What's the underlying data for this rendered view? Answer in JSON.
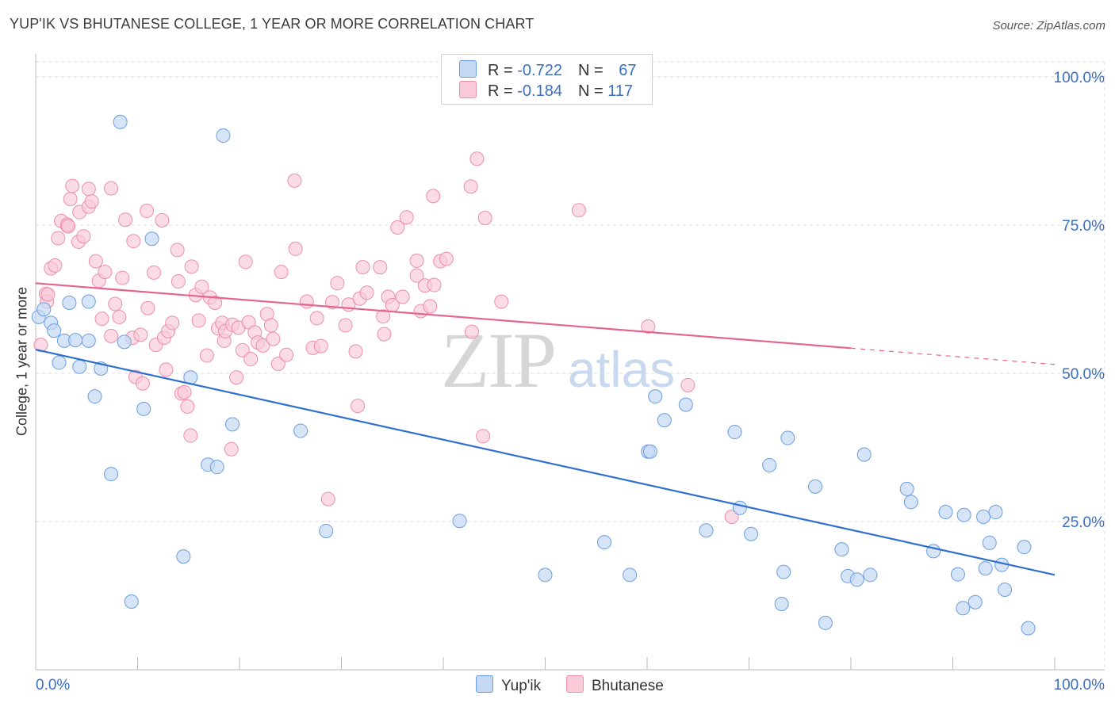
{
  "title": "YUP'IK VS BHUTANESE COLLEGE, 1 YEAR OR MORE CORRELATION CHART",
  "source": "Source: ZipAtlas.com",
  "legend": {
    "rows": [
      {
        "r_label": "R = ",
        "r_value": "-0.722",
        "n_label": "N = ",
        "n_value": "67"
      },
      {
        "r_label": "R = ",
        "r_value": "-0.184",
        "n_label": "N = ",
        "n_value": "117"
      }
    ]
  },
  "bottom_legend": [
    "Yup'ik",
    "Bhutanese"
  ],
  "colors": {
    "blue_fill": "#c5d9f5",
    "blue_stroke": "#6a9ee0",
    "blue_line": "#2f6fd0",
    "pink_fill": "#f9cad8",
    "pink_stroke": "#ec8fab",
    "pink_line": "#e5648e",
    "tick_text": "#3a6fc4",
    "grid": "#dddddd"
  },
  "chart_data": {
    "type": "scatter",
    "title": "YUP'IK VS BHUTANESE COLLEGE, 1 YEAR OR MORE CORRELATION CHART",
    "xlabel": "",
    "ylabel": "College, 1 year or more",
    "x_tick_labels": [
      "0.0%",
      "100.0%"
    ],
    "y_tick_labels": [
      "100.0%",
      "75.0%",
      "50.0%",
      "25.0%"
    ],
    "y_ticks": [
      100,
      75,
      50,
      25
    ],
    "xlim": [
      0,
      100
    ],
    "ylim": [
      0,
      103
    ],
    "watermark": "ZIPatlas",
    "series": [
      {
        "name": "Yup'ik",
        "r": -0.722,
        "n": 67,
        "trend": {
          "x": [
            0,
            100
          ],
          "y": [
            54.0,
            16.0
          ],
          "solid_to": 100
        },
        "points": [
          [
            0.3,
            59.5
          ],
          [
            0.8,
            60.8
          ],
          [
            1.5,
            58.5
          ],
          [
            1.8,
            57.2
          ],
          [
            2.3,
            51.8
          ],
          [
            2.8,
            55.5
          ],
          [
            3.3,
            61.9
          ],
          [
            3.9,
            55.6
          ],
          [
            4.3,
            51.1
          ],
          [
            5.2,
            55.5
          ],
          [
            5.2,
            62.1
          ],
          [
            5.8,
            46.1
          ],
          [
            6.4,
            50.8
          ],
          [
            7.4,
            33.0
          ],
          [
            8.3,
            92.4
          ],
          [
            8.7,
            55.3
          ],
          [
            9.4,
            11.5
          ],
          [
            10.6,
            44.0
          ],
          [
            11.4,
            72.7
          ],
          [
            14.5,
            19.1
          ],
          [
            15.2,
            49.3
          ],
          [
            16.9,
            34.6
          ],
          [
            17.8,
            34.2
          ],
          [
            18.4,
            90.1
          ],
          [
            19.3,
            41.4
          ],
          [
            26.0,
            40.3
          ],
          [
            28.5,
            23.4
          ],
          [
            41.6,
            25.1
          ],
          [
            50.0,
            16.0
          ],
          [
            55.8,
            21.5
          ],
          [
            58.3,
            16.0
          ],
          [
            60.1,
            36.8
          ],
          [
            60.3,
            36.8
          ],
          [
            60.8,
            46.1
          ],
          [
            61.7,
            42.1
          ],
          [
            63.8,
            44.7
          ],
          [
            65.8,
            23.5
          ],
          [
            68.6,
            40.1
          ],
          [
            69.1,
            27.3
          ],
          [
            70.2,
            22.9
          ],
          [
            72.0,
            34.5
          ],
          [
            73.4,
            16.5
          ],
          [
            73.2,
            11.1
          ],
          [
            73.8,
            39.1
          ],
          [
            76.5,
            30.9
          ],
          [
            77.5,
            7.9
          ],
          [
            79.1,
            20.3
          ],
          [
            79.7,
            15.8
          ],
          [
            80.6,
            15.2
          ],
          [
            81.3,
            36.3
          ],
          [
            81.9,
            16.0
          ],
          [
            85.5,
            30.5
          ],
          [
            85.9,
            28.3
          ],
          [
            88.1,
            20.0
          ],
          [
            89.3,
            26.6
          ],
          [
            90.5,
            16.1
          ],
          [
            91.0,
            10.4
          ],
          [
            91.1,
            26.1
          ],
          [
            92.2,
            11.4
          ],
          [
            93.0,
            25.8
          ],
          [
            93.2,
            17.1
          ],
          [
            93.6,
            21.4
          ],
          [
            94.2,
            26.6
          ],
          [
            94.8,
            17.7
          ],
          [
            95.1,
            13.5
          ],
          [
            97.0,
            20.7
          ],
          [
            97.4,
            7.0
          ]
        ]
      },
      {
        "name": "Bhutanese",
        "r": -0.184,
        "n": 117,
        "trend": {
          "x": [
            0,
            100
          ],
          "y": [
            65.2,
            51.5
          ],
          "solid_to": 80
        },
        "points": [
          [
            0.5,
            54.8
          ],
          [
            1.0,
            63.4
          ],
          [
            1.1,
            62.1
          ],
          [
            1.2,
            63.3
          ],
          [
            1.5,
            67.7
          ],
          [
            1.9,
            68.2
          ],
          [
            2.2,
            72.8
          ],
          [
            2.5,
            75.7
          ],
          [
            3.1,
            74.9
          ],
          [
            3.1,
            75.1
          ],
          [
            3.2,
            74.8
          ],
          [
            3.4,
            79.4
          ],
          [
            3.6,
            81.6
          ],
          [
            4.2,
            72.2
          ],
          [
            4.3,
            77.2
          ],
          [
            4.7,
            73.1
          ],
          [
            5.2,
            81.1
          ],
          [
            5.2,
            78.1
          ],
          [
            5.5,
            79.0
          ],
          [
            5.9,
            68.9
          ],
          [
            6.2,
            65.6
          ],
          [
            6.5,
            59.2
          ],
          [
            6.8,
            67.1
          ],
          [
            7.4,
            56.3
          ],
          [
            7.4,
            81.2
          ],
          [
            7.8,
            61.7
          ],
          [
            8.2,
            59.5
          ],
          [
            8.5,
            66.1
          ],
          [
            8.8,
            75.9
          ],
          [
            9.5,
            56.0
          ],
          [
            9.6,
            72.3
          ],
          [
            9.8,
            49.4
          ],
          [
            10.3,
            56.5
          ],
          [
            10.5,
            48.3
          ],
          [
            10.9,
            77.4
          ],
          [
            11.0,
            61.0
          ],
          [
            11.6,
            67.0
          ],
          [
            11.8,
            54.8
          ],
          [
            12.4,
            75.8
          ],
          [
            12.6,
            56.0
          ],
          [
            12.8,
            50.6
          ],
          [
            13.0,
            57.1
          ],
          [
            13.4,
            58.5
          ],
          [
            13.9,
            70.8
          ],
          [
            14.0,
            65.5
          ],
          [
            14.3,
            46.6
          ],
          [
            14.6,
            46.8
          ],
          [
            14.9,
            44.4
          ],
          [
            15.2,
            39.5
          ],
          [
            15.3,
            68.0
          ],
          [
            15.7,
            63.2
          ],
          [
            16.0,
            58.9
          ],
          [
            16.3,
            64.6
          ],
          [
            16.8,
            53.0
          ],
          [
            17.1,
            62.8
          ],
          [
            17.6,
            61.9
          ],
          [
            17.9,
            57.6
          ],
          [
            18.3,
            58.5
          ],
          [
            18.5,
            55.5
          ],
          [
            18.6,
            57.1
          ],
          [
            19.2,
            37.2
          ],
          [
            19.3,
            58.2
          ],
          [
            19.7,
            49.3
          ],
          [
            19.9,
            57.7
          ],
          [
            20.3,
            53.9
          ],
          [
            20.6,
            68.8
          ],
          [
            20.9,
            58.6
          ],
          [
            21.1,
            52.4
          ],
          [
            21.5,
            56.9
          ],
          [
            21.8,
            55.2
          ],
          [
            22.3,
            54.7
          ],
          [
            22.7,
            60.0
          ],
          [
            23.1,
            58.1
          ],
          [
            23.3,
            55.8
          ],
          [
            23.8,
            51.6
          ],
          [
            24.1,
            67.1
          ],
          [
            24.6,
            53.1
          ],
          [
            25.4,
            82.5
          ],
          [
            25.5,
            71.0
          ],
          [
            26.6,
            62.1
          ],
          [
            27.2,
            54.3
          ],
          [
            27.6,
            59.3
          ],
          [
            28.0,
            54.6
          ],
          [
            28.7,
            28.8
          ],
          [
            29.1,
            62.0
          ],
          [
            29.6,
            65.2
          ],
          [
            30.4,
            58.1
          ],
          [
            30.7,
            61.6
          ],
          [
            31.4,
            53.7
          ],
          [
            31.6,
            44.5
          ],
          [
            31.8,
            62.6
          ],
          [
            32.1,
            67.9
          ],
          [
            32.5,
            63.6
          ],
          [
            33.8,
            67.9
          ],
          [
            34.1,
            59.6
          ],
          [
            34.2,
            56.6
          ],
          [
            34.6,
            62.9
          ],
          [
            35.0,
            61.5
          ],
          [
            35.5,
            74.6
          ],
          [
            36.0,
            62.9
          ],
          [
            36.4,
            76.3
          ],
          [
            37.4,
            69.0
          ],
          [
            37.4,
            66.5
          ],
          [
            37.8,
            60.5
          ],
          [
            38.2,
            64.8
          ],
          [
            38.7,
            61.3
          ],
          [
            39.0,
            79.9
          ],
          [
            39.1,
            64.9
          ],
          [
            39.7,
            68.9
          ],
          [
            40.3,
            69.3
          ],
          [
            42.7,
            81.5
          ],
          [
            42.8,
            57.0
          ],
          [
            43.3,
            86.2
          ],
          [
            43.9,
            39.4
          ],
          [
            44.1,
            76.2
          ],
          [
            45.7,
            62.1
          ],
          [
            53.3,
            77.5
          ],
          [
            60.1,
            57.9
          ],
          [
            64.0,
            48.0
          ],
          [
            68.3,
            25.8
          ]
        ]
      }
    ]
  }
}
